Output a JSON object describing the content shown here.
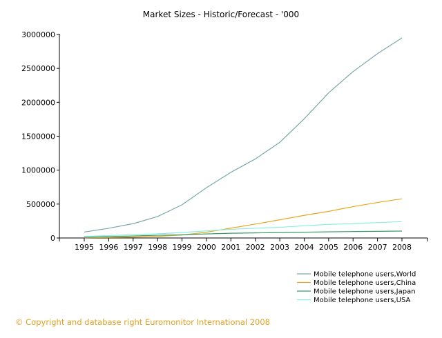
{
  "chart_data": {
    "type": "line",
    "title": "Market Sizes - Historic/Forecast - '000",
    "xlabel": "",
    "ylabel": "",
    "x": [
      "1995",
      "1996",
      "1997",
      "1998",
      "1999",
      "2000",
      "2001",
      "2002",
      "2003",
      "2004",
      "2005",
      "2006",
      "2007",
      "2008"
    ],
    "ylim": [
      0,
      3000000
    ],
    "yticks": [
      "0",
      "500000",
      "1000000",
      "1500000",
      "2000000",
      "2500000",
      "3000000"
    ],
    "grid": false,
    "legend_position": "bottom-right",
    "series": [
      {
        "name": "Mobile telephone users,World",
        "color": "#7aa8aa",
        "values": [
          88000,
          143000,
          211000,
          316000,
          489000,
          741000,
          968000,
          1165000,
          1410000,
          1756000,
          2140000,
          2453000,
          2718000,
          2949000
        ]
      },
      {
        "name": "Mobile telephone users,China",
        "color": "#e8a820",
        "values": [
          4000,
          7000,
          13000,
          24000,
          43000,
          85000,
          145000,
          205000,
          268000,
          333000,
          393000,
          462000,
          523000,
          578000
        ]
      },
      {
        "name": "Mobile telephone users,Japan",
        "color": "#3c9a6c",
        "values": [
          10000,
          20000,
          30000,
          40000,
          47000,
          60000,
          70000,
          75000,
          80000,
          85000,
          90000,
          95000,
          98000,
          102000
        ]
      },
      {
        "name": "Mobile telephone users,USA",
        "color": "#8ceedc",
        "values": [
          24000,
          34000,
          48000,
          61000,
          81000,
          105000,
          128000,
          143000,
          157000,
          180000,
          201000,
          211000,
          227000,
          241000
        ]
      }
    ]
  },
  "footer": {
    "copyright": "© Copyright and database right Euromonitor International 2008"
  }
}
